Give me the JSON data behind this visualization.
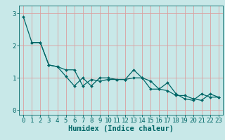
{
  "xlabel": "Humidex (Indice chaleur)",
  "ylabel": "",
  "background_color": "#c8e8e8",
  "line_color": "#006666",
  "grid_color": "#daa0a0",
  "xlim": [
    -0.5,
    23.5
  ],
  "ylim": [
    -0.15,
    3.25
  ],
  "xticks": [
    0,
    1,
    2,
    3,
    4,
    5,
    6,
    7,
    8,
    9,
    10,
    11,
    12,
    13,
    14,
    15,
    16,
    17,
    18,
    19,
    20,
    21,
    22,
    23
  ],
  "yticks": [
    0,
    1,
    2,
    3
  ],
  "line1_x": [
    0,
    1,
    2,
    3,
    4,
    5,
    6,
    7,
    8,
    9,
    10,
    11,
    12,
    13,
    14,
    15,
    16,
    17,
    18,
    19,
    20,
    21,
    22,
    23
  ],
  "line1_y": [
    2.9,
    2.1,
    2.1,
    1.4,
    1.35,
    1.05,
    0.75,
    1.0,
    0.75,
    1.0,
    1.0,
    0.95,
    0.95,
    1.25,
    1.0,
    0.65,
    0.65,
    0.85,
    0.5,
    0.35,
    0.3,
    0.5,
    0.4,
    0.4
  ],
  "line2_x": [
    1,
    2,
    3,
    4,
    5,
    6,
    7,
    8,
    9,
    10,
    11,
    12,
    13,
    14,
    15,
    16,
    17,
    18,
    19,
    20,
    21,
    22,
    23
  ],
  "line2_y": [
    2.1,
    2.1,
    1.4,
    1.35,
    1.25,
    1.25,
    0.75,
    0.95,
    0.9,
    0.95,
    0.95,
    0.95,
    1.0,
    1.0,
    0.9,
    0.65,
    0.6,
    0.45,
    0.45,
    0.35,
    0.3,
    0.5,
    0.4
  ],
  "font_size": 6.5,
  "xlabel_fontsize": 7.5
}
